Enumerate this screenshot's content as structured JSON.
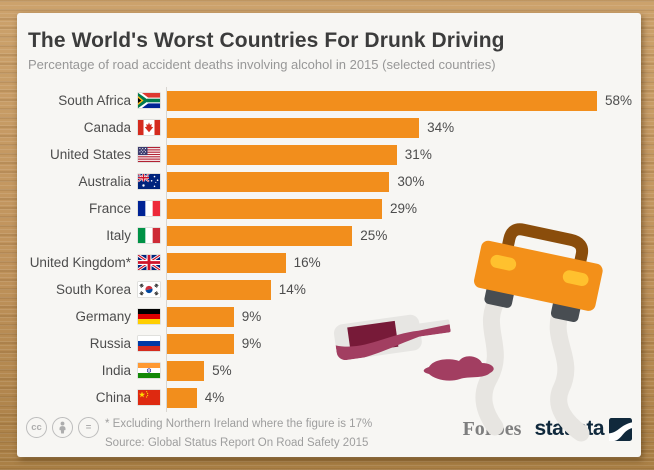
{
  "header": {
    "title": "The World's Worst Countries For Drunk Driving",
    "subtitle": "Percentage of road accident deaths involving alcohol in 2015 (selected countries)"
  },
  "chart_data": {
    "type": "bar",
    "orientation": "horizontal",
    "title": "The World's Worst Countries For Drunk Driving",
    "subtitle": "Percentage of road accident deaths involving alcohol in 2015 (selected countries)",
    "unit": "%",
    "xlim": [
      0,
      58
    ],
    "grid": false,
    "categories": [
      "South Africa",
      "Canada",
      "United States",
      "Australia",
      "France",
      "Italy",
      "United Kingdom*",
      "South Korea",
      "Germany",
      "Russia",
      "India",
      "China"
    ],
    "values": [
      58,
      34,
      31,
      30,
      29,
      25,
      16,
      14,
      9,
      9,
      5,
      4
    ],
    "value_labels": [
      "58%",
      "34%",
      "31%",
      "30%",
      "29%",
      "25%",
      "16%",
      "14%",
      "9%",
      "9%",
      "5%",
      "4%"
    ],
    "flags": [
      "za",
      "ca",
      "us",
      "au",
      "fr",
      "it",
      "gb",
      "kr",
      "de",
      "ru",
      "in",
      "cn"
    ]
  },
  "illustration": {
    "items": [
      "tilted-car-with-skid-marks",
      "spilled-wine-bottle",
      "wine-puddle"
    ]
  },
  "footer": {
    "footnote": "* Excluding Northern Ireland where the figure is 17%",
    "source": "Source: Global Status Report On Road Safety 2015",
    "license_icons": [
      "cc",
      "attribution",
      "no-derivatives"
    ],
    "brands": {
      "forbes": "Forbes",
      "statista": "statista"
    }
  },
  "colors": {
    "bar": "#F28E1C",
    "card_bg": "#F7F6F3",
    "wood_frame": "#BE9055",
    "title_text": "#3C3C3C",
    "muted_text": "#9E9E9E",
    "label_text": "#4D4D4D",
    "statista_navy": "#10293C",
    "forbes_gray": "#7E7E7E",
    "car_body": "#F39019",
    "car_roof": "#8A4D0B",
    "headlight": "#FFC12E",
    "wheel": "#484D52",
    "skid_mark": "#E7E5E1",
    "wine": "#A23E61",
    "wine_dark": "#771A38"
  }
}
